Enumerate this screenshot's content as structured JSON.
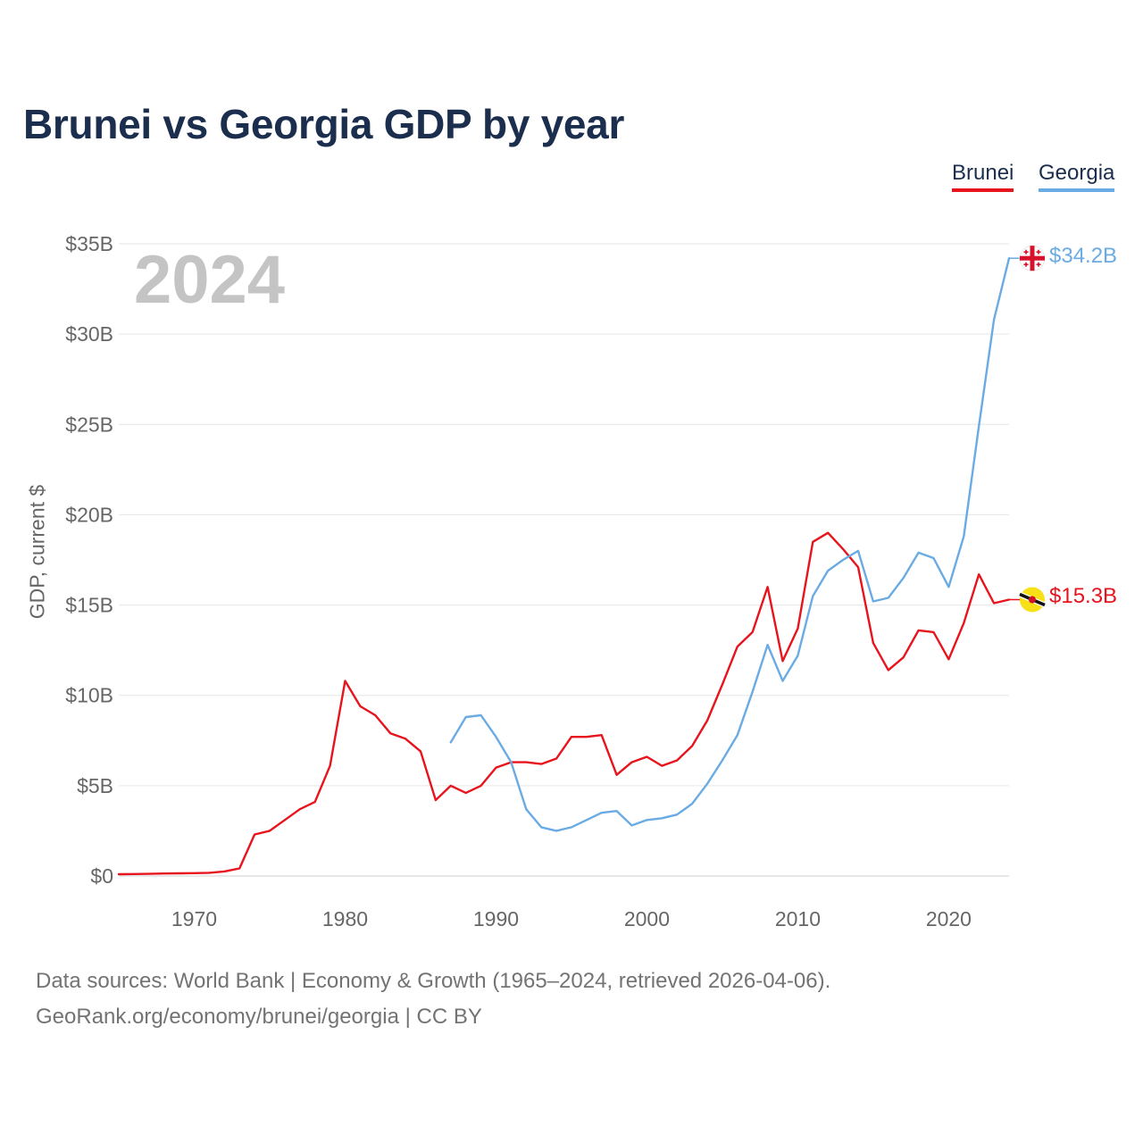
{
  "title": "Brunei vs Georgia GDP by year",
  "legend": [
    {
      "name": "Brunei",
      "color": "#e8141d"
    },
    {
      "name": "Georgia",
      "color": "#6aabe4"
    }
  ],
  "year_watermark": "2024",
  "y_axis_label": "GDP, current $",
  "end_labels": {
    "brunei": "$15.3B",
    "georgia": "$34.2B"
  },
  "flags": {
    "brunei": "brunei-flag-icon",
    "georgia": "georgia-flag-icon"
  },
  "footer": {
    "sources": "Data sources: World Bank | Economy & Growth (1965–2024, retrieved 2026-04-06).",
    "link": "GeoRank.org/economy/brunei/georgia | CC BY"
  },
  "chart_data": {
    "type": "line",
    "title": "Brunei vs Georgia GDP by year",
    "xlabel": "",
    "ylabel": "GDP, current $",
    "xlim": [
      1965,
      2024
    ],
    "ylim": [
      0,
      35
    ],
    "unit": "billion USD",
    "x_ticks": [
      1970,
      1980,
      1990,
      2000,
      2010,
      2020
    ],
    "y_ticks": [
      0,
      5,
      10,
      15,
      20,
      25,
      30,
      35
    ],
    "y_tick_labels": [
      "$0",
      "$5B",
      "$10B",
      "$15B",
      "$20B",
      "$25B",
      "$30B",
      "$35B"
    ],
    "grid": true,
    "legend_position": "top-right",
    "series": [
      {
        "name": "Brunei",
        "color": "#e8141d",
        "x": [
          1965,
          1966,
          1967,
          1968,
          1969,
          1970,
          1971,
          1972,
          1973,
          1974,
          1975,
          1976,
          1977,
          1978,
          1979,
          1980,
          1981,
          1982,
          1983,
          1984,
          1985,
          1986,
          1987,
          1988,
          1989,
          1990,
          1991,
          1992,
          1993,
          1994,
          1995,
          1996,
          1997,
          1998,
          1999,
          2000,
          2001,
          2002,
          2003,
          2004,
          2005,
          2006,
          2007,
          2008,
          2009,
          2010,
          2011,
          2012,
          2013,
          2014,
          2015,
          2016,
          2017,
          2018,
          2019,
          2020,
          2021,
          2022,
          2023,
          2024
        ],
        "values": [
          0.1,
          0.11,
          0.12,
          0.14,
          0.15,
          0.16,
          0.18,
          0.25,
          0.42,
          2.3,
          2.5,
          3.1,
          3.7,
          4.1,
          6.1,
          10.8,
          9.4,
          8.9,
          7.9,
          7.6,
          6.9,
          4.2,
          5.0,
          4.6,
          5.0,
          6.0,
          6.3,
          6.3,
          6.2,
          6.5,
          7.7,
          7.7,
          7.8,
          5.6,
          6.3,
          6.6,
          6.1,
          6.4,
          7.2,
          8.6,
          10.6,
          12.7,
          13.5,
          16.0,
          11.9,
          13.7,
          18.5,
          19.0,
          18.1,
          17.1,
          12.9,
          11.4,
          12.1,
          13.6,
          13.5,
          12.0,
          14.0,
          16.7,
          15.1,
          15.3
        ]
      },
      {
        "name": "Georgia",
        "color": "#6aabe4",
        "x": [
          1987,
          1988,
          1989,
          1990,
          1991,
          1992,
          1993,
          1994,
          1995,
          1996,
          1997,
          1998,
          1999,
          2000,
          2001,
          2002,
          2003,
          2004,
          2005,
          2006,
          2007,
          2008,
          2009,
          2010,
          2011,
          2012,
          2013,
          2014,
          2015,
          2016,
          2017,
          2018,
          2019,
          2020,
          2021,
          2022,
          2023,
          2024
        ],
        "values": [
          7.4,
          8.8,
          8.9,
          7.7,
          6.3,
          3.7,
          2.7,
          2.5,
          2.7,
          3.1,
          3.5,
          3.6,
          2.8,
          3.1,
          3.2,
          3.4,
          4.0,
          5.1,
          6.4,
          7.8,
          10.2,
          12.8,
          10.8,
          12.2,
          15.5,
          16.9,
          17.5,
          18.0,
          15.2,
          15.4,
          16.5,
          17.9,
          17.6,
          16.0,
          18.8,
          24.9,
          30.8,
          34.2
        ]
      }
    ]
  }
}
